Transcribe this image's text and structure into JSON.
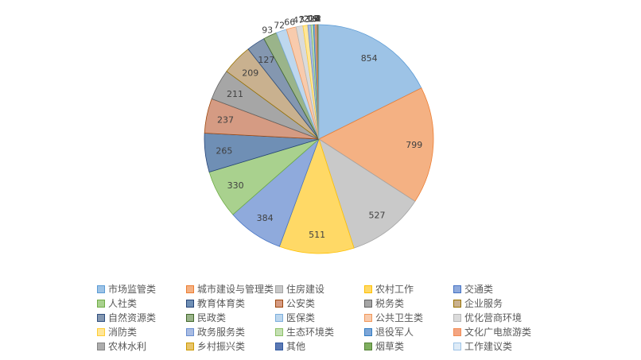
{
  "chart_data": {
    "type": "pie",
    "title": "",
    "legend_position": "bottom",
    "slices": [
      {
        "label": "市场监管类",
        "value": 854,
        "color": "#9DC3E6",
        "stroke": "#5B9BD5",
        "show_label": true
      },
      {
        "label": "城市建设与管理类",
        "value": 799,
        "color": "#F4B183",
        "stroke": "#ED7D31",
        "show_label": true
      },
      {
        "label": "住房建设",
        "value": 527,
        "color": "#C9C9C9",
        "stroke": "#A5A5A5",
        "show_label": true
      },
      {
        "label": "农村工作",
        "value": 511,
        "color": "#FFD966",
        "stroke": "#FFC000",
        "show_label": true
      },
      {
        "label": "交通类",
        "value": 384,
        "color": "#8FAADC",
        "stroke": "#4472C4",
        "show_label": true
      },
      {
        "label": "人社类",
        "value": 330,
        "color": "#A9D18E",
        "stroke": "#70AD47",
        "show_label": true
      },
      {
        "label": "教育体育类",
        "value": 265,
        "color": "#6F8FB5",
        "stroke": "#264478",
        "show_label": true
      },
      {
        "label": "公安类",
        "value": 237,
        "color": "#D59B83",
        "stroke": "#9E480E",
        "show_label": true
      },
      {
        "label": "税务类",
        "value": 211,
        "color": "#A6A6A6",
        "stroke": "#636363",
        "show_label": true
      },
      {
        "label": "企业服务",
        "value": 209,
        "color": "#C9B18F",
        "stroke": "#997300",
        "show_label": true
      },
      {
        "label": "自然资源类",
        "value": 127,
        "color": "#8497B0",
        "stroke": "#2F4F80",
        "show_label": true
      },
      {
        "label": "民政类",
        "value": 93,
        "color": "#9AB48A",
        "stroke": "#43682B",
        "show_label": true
      },
      {
        "label": "医保类",
        "value": 72,
        "color": "#BDD7EE",
        "stroke": "#7CAFDD",
        "show_label": true
      },
      {
        "label": "公共卫生类",
        "value": 66,
        "color": "#F8CBAD",
        "stroke": "#F1975A",
        "show_label": true
      },
      {
        "label": "优化营商环境",
        "value": 47,
        "color": "#DBDBDB",
        "stroke": "#B7B7B7",
        "show_label": true
      },
      {
        "label": "消防类",
        "value": 33,
        "color": "#FFE699",
        "stroke": "#FFCD33",
        "show_label": true
      },
      {
        "label": "政务服务类",
        "value": 22,
        "color": "#A9BCE3",
        "stroke": "#698ED0",
        "show_label": true
      },
      {
        "label": "生态环境类",
        "value": 16,
        "color": "#C5E0B4",
        "stroke": "#8CC168",
        "show_label": true
      },
      {
        "label": "退役军人",
        "value": 12,
        "color": "#7DA6D8",
        "stroke": "#327DC2",
        "show_label": true
      },
      {
        "label": "文化广电旅游类",
        "value": 9,
        "color": "#F4A582",
        "stroke": "#F18C55",
        "show_label": true
      },
      {
        "label": "农林水利",
        "value": 6,
        "color": "#ADADAD",
        "stroke": "#848484",
        "show_label": true
      },
      {
        "label": "乡村振兴类",
        "value": 4,
        "color": "#E8C46A",
        "stroke": "#CC9A00",
        "show_label": true
      },
      {
        "label": "其他",
        "value": 3,
        "color": "#5B79B4",
        "stroke": "#335AA1",
        "show_label": true
      },
      {
        "label": "烟草类",
        "value": 2,
        "color": "#7FAF5F",
        "stroke": "#548235",
        "show_label": true
      },
      {
        "label": "工作建议类",
        "value": 1,
        "color": "#DEEBF7",
        "stroke": "#9DC3E6",
        "show_label": false
      }
    ]
  }
}
